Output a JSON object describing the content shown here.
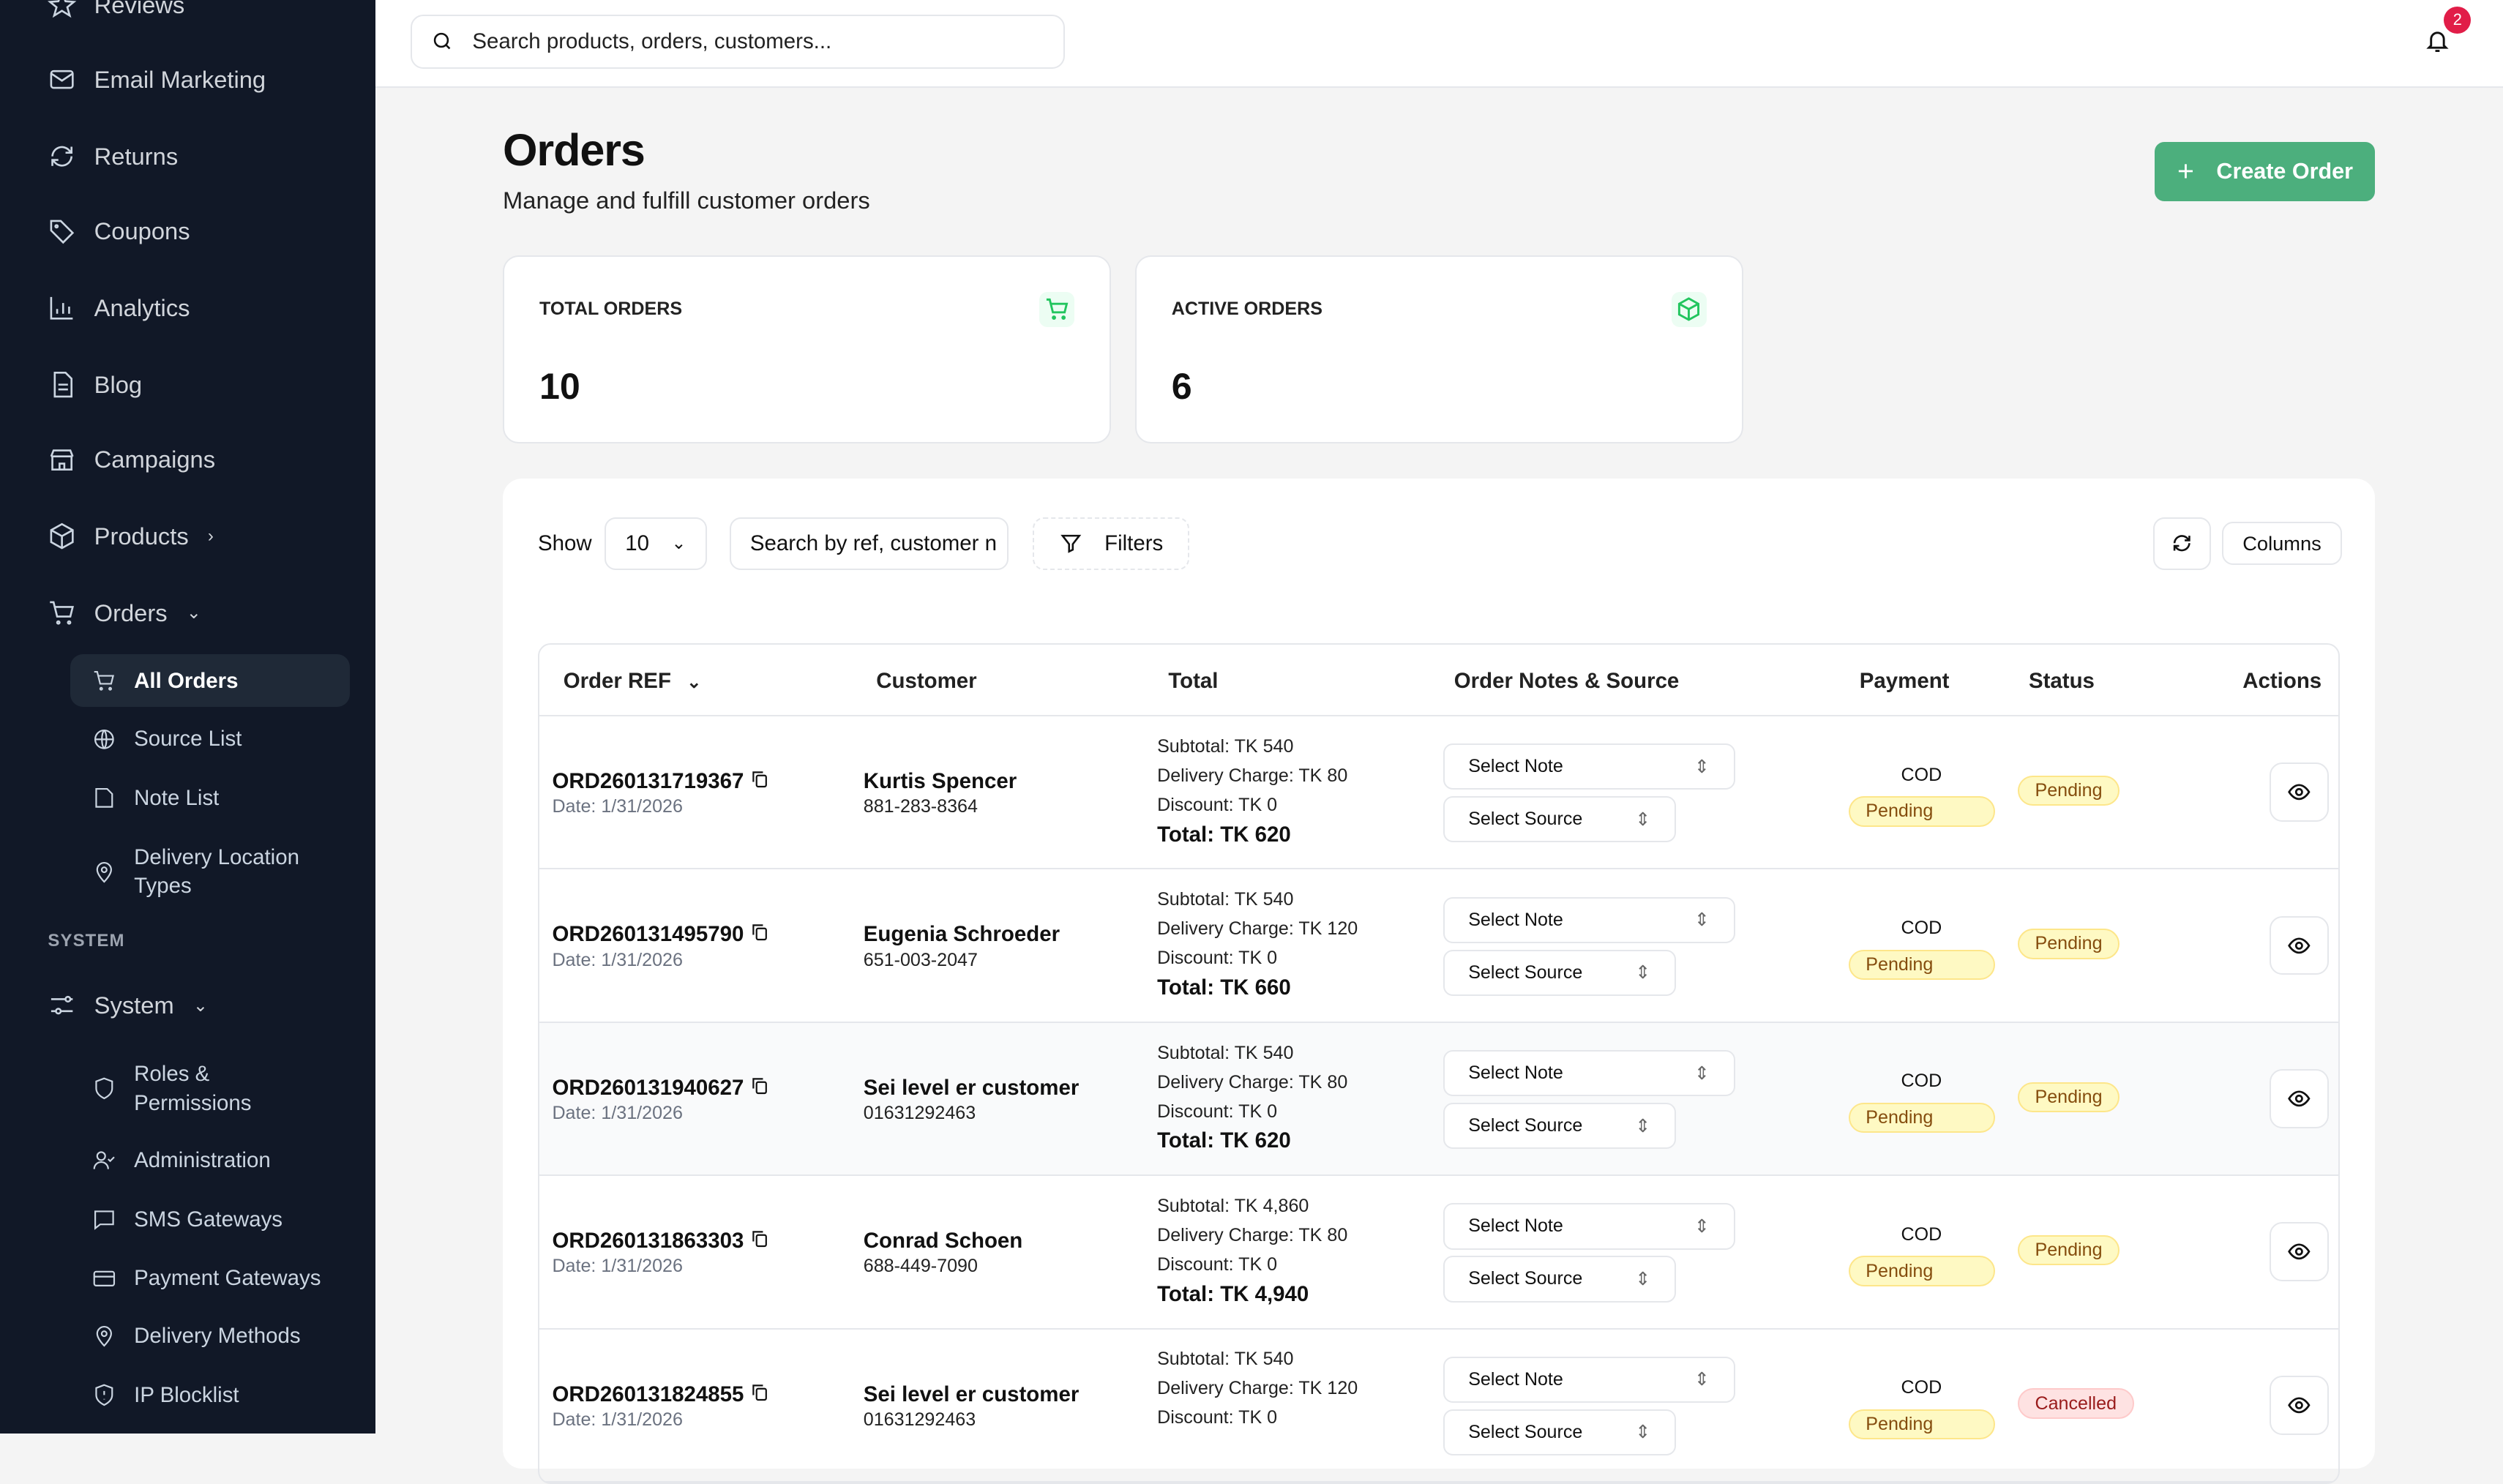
{
  "sidebar": {
    "items": [
      {
        "label": "Reviews",
        "icon": "star-icon"
      },
      {
        "label": "Email Marketing",
        "icon": "mail-icon"
      },
      {
        "label": "Returns",
        "icon": "refresh-icon"
      },
      {
        "label": "Coupons",
        "icon": "tag-icon"
      },
      {
        "label": "Analytics",
        "icon": "bar-chart-icon"
      },
      {
        "label": "Blog",
        "icon": "document-icon"
      },
      {
        "label": "Campaigns",
        "icon": "store-icon"
      },
      {
        "label": "Products",
        "icon": "box-icon"
      },
      {
        "label": "Orders",
        "icon": "cart-icon"
      }
    ],
    "orders_sub": [
      {
        "label": "All Orders"
      },
      {
        "label": "Source List"
      },
      {
        "label": "Note List"
      },
      {
        "label": "Delivery Location Types"
      }
    ],
    "section": "SYSTEM",
    "system": "System",
    "system_sub": [
      {
        "label": "Roles & Permissions"
      },
      {
        "label": "Administration"
      },
      {
        "label": "SMS Gateways"
      },
      {
        "label": "Payment Gateways"
      },
      {
        "label": "Delivery Methods"
      },
      {
        "label": "IP Blocklist"
      }
    ]
  },
  "topbar": {
    "search_placeholder": "Search products, orders, customers...",
    "notifications": "2"
  },
  "page": {
    "title": "Orders",
    "subtitle": "Manage and fulfill customer orders",
    "create": "Create Order"
  },
  "stats": [
    {
      "label": "TOTAL ORDERS",
      "value": "10"
    },
    {
      "label": "ACTIVE ORDERS",
      "value": "6"
    }
  ],
  "controls": {
    "show": "Show",
    "page_size": "10",
    "search": "Search by ref, customer n",
    "filters": "Filters",
    "columns": "Columns"
  },
  "table": {
    "headers": [
      "Order REF",
      "Customer",
      "Total",
      "Order Notes & Source",
      "Payment",
      "Status",
      "Actions"
    ],
    "rows": [
      {
        "ref": "ORD260131719367",
        "date": "Date: 1/31/2026",
        "customer": "Kurtis Spencer",
        "phone": "881-283-8364",
        "subtotal": "Subtotal: TK 540",
        "delivery": "Delivery Charge: TK 80",
        "discount": "Discount: TK 0",
        "total": "Total: TK 620",
        "note": "Select Note",
        "source": "Select Source",
        "method": "COD",
        "payment": "Pending",
        "status": "Pending"
      },
      {
        "ref": "ORD260131495790",
        "date": "Date: 1/31/2026",
        "customer": "Eugenia Schroeder",
        "phone": "651-003-2047",
        "subtotal": "Subtotal: TK 540",
        "delivery": "Delivery Charge: TK 120",
        "discount": "Discount: TK 0",
        "total": "Total: TK 660",
        "note": "Select Note",
        "source": "Select Source",
        "method": "COD",
        "payment": "Pending",
        "status": "Pending"
      },
      {
        "ref": "ORD260131940627",
        "date": "Date: 1/31/2026",
        "customer": "Sei level er customer",
        "phone": "01631292463",
        "subtotal": "Subtotal: TK 540",
        "delivery": "Delivery Charge: TK 80",
        "discount": "Discount: TK 0",
        "total": "Total: TK 620",
        "note": "Select Note",
        "source": "Select Source",
        "method": "COD",
        "payment": "Pending",
        "status": "Pending"
      },
      {
        "ref": "ORD260131863303",
        "date": "Date: 1/31/2026",
        "customer": "Conrad Schoen",
        "phone": "688-449-7090",
        "subtotal": "Subtotal: TK 4,860",
        "delivery": "Delivery Charge: TK 80",
        "discount": "Discount: TK 0",
        "total": "Total: TK 4,940",
        "note": "Select Note",
        "source": "Select Source",
        "method": "COD",
        "payment": "Pending",
        "status": "Pending"
      },
      {
        "ref": "ORD260131824855",
        "date": "Date: 1/31/2026",
        "customer": "Sei level er customer",
        "phone": "01631292463",
        "subtotal": "Subtotal: TK 540",
        "delivery": "Delivery Charge: TK 120",
        "discount": "Discount: TK 0",
        "total": "",
        "note": "Select Note",
        "source": "Select Source",
        "method": "COD",
        "payment": "Pending",
        "status": "Cancelled"
      }
    ]
  },
  "colors": {
    "sidebar": "#111827",
    "accent": "#4caf7d"
  }
}
